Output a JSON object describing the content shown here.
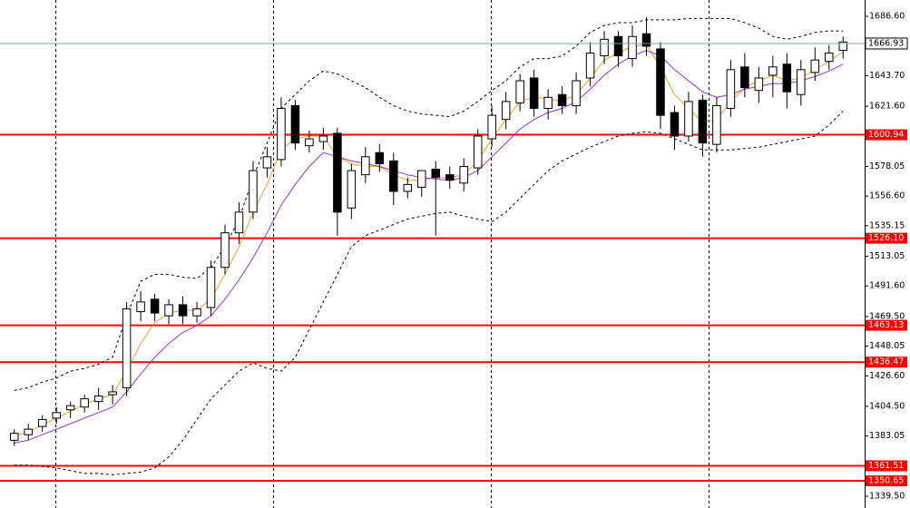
{
  "chart_data": {
    "type": "candlestick",
    "ylim": [
      1331,
      1698.4
    ],
    "yticks": [
      {
        "value": 1686.6,
        "label": "1686.60"
      },
      {
        "value": 1643.7,
        "label": "1643.70"
      },
      {
        "value": 1621.6,
        "label": "1621.60"
      },
      {
        "value": 1578.05,
        "label": "1578.05"
      },
      {
        "value": 1556.6,
        "label": "1556.60"
      },
      {
        "value": 1535.15,
        "label": "1535.15"
      },
      {
        "value": 1513.05,
        "label": "1513.05"
      },
      {
        "value": 1491.6,
        "label": "1491.60"
      },
      {
        "value": 1469.5,
        "label": "1469.50"
      },
      {
        "value": 1448.05,
        "label": "1448.05"
      },
      {
        "value": 1426.6,
        "label": "1426.60"
      },
      {
        "value": 1404.5,
        "label": "1404.50"
      },
      {
        "value": 1383.05,
        "label": "1383.05"
      },
      {
        "value": 1339.5,
        "label": "1339.50"
      }
    ],
    "levels": [
      {
        "value": 1600.94,
        "label": "1600.94"
      },
      {
        "value": 1526.1,
        "label": "1526.10"
      },
      {
        "value": 1463.13,
        "label": "1463.13"
      },
      {
        "value": 1436.47,
        "label": "1436.47"
      },
      {
        "value": 1361.51,
        "label": "1361.51"
      },
      {
        "value": 1350.65,
        "label": "1350.65"
      }
    ],
    "level_color": "#ff0000",
    "current_price": {
      "value": 1666.93,
      "label": "1666.93"
    },
    "open": [
      1380,
      1384,
      1390,
      1396,
      1402,
      1404,
      1408,
      1413,
      1418,
      1473,
      1482,
      1470,
      1478,
      1470,
      1476,
      1505,
      1530,
      1545,
      1577,
      1583,
      1622,
      1593,
      1596,
      1602,
      1548,
      1572,
      1588,
      1582,
      1560,
      1563,
      1576,
      1572,
      1566,
      1577,
      1598,
      1612,
      1624,
      1642,
      1620,
      1630,
      1622,
      1642,
      1658,
      1672,
      1656,
      1674,
      1663,
      1617,
      1600,
      1626,
      1594,
      1620,
      1650,
      1633,
      1644,
      1652,
      1630,
      1646,
      1654,
      1662
    ],
    "high": [
      1388,
      1392,
      1398,
      1404,
      1408,
      1413,
      1418,
      1420,
      1480,
      1488,
      1486,
      1482,
      1484,
      1480,
      1510,
      1536,
      1552,
      1582,
      1592,
      1628,
      1626,
      1604,
      1606,
      1606,
      1580,
      1592,
      1594,
      1588,
      1570,
      1572,
      1582,
      1578,
      1584,
      1605,
      1622,
      1632,
      1645,
      1648,
      1634,
      1636,
      1646,
      1668,
      1676,
      1676,
      1680,
      1686,
      1668,
      1622,
      1632,
      1630,
      1628,
      1655,
      1660,
      1650,
      1658,
      1660,
      1655,
      1664,
      1666,
      1672
    ],
    "low": [
      1376,
      1380,
      1386,
      1392,
      1396,
      1400,
      1402,
      1406,
      1412,
      1466,
      1466,
      1464,
      1464,
      1465,
      1470,
      1500,
      1522,
      1540,
      1570,
      1578,
      1590,
      1588,
      1590,
      1528,
      1540,
      1566,
      1574,
      1550,
      1555,
      1556,
      1528,
      1562,
      1560,
      1572,
      1592,
      1605,
      1618,
      1614,
      1612,
      1616,
      1616,
      1636,
      1652,
      1650,
      1650,
      1658,
      1605,
      1590,
      1596,
      1585,
      1588,
      1614,
      1628,
      1624,
      1628,
      1620,
      1622,
      1640,
      1648,
      1656
    ],
    "close": [
      1385,
      1388,
      1395,
      1400,
      1405,
      1410,
      1412,
      1415,
      1475,
      1480,
      1472,
      1478,
      1470,
      1475,
      1505,
      1530,
      1545,
      1575,
      1585,
      1620,
      1595,
      1598,
      1600,
      1545,
      1575,
      1585,
      1580,
      1560,
      1565,
      1575,
      1570,
      1568,
      1578,
      1600,
      1615,
      1625,
      1640,
      1620,
      1628,
      1622,
      1640,
      1660,
      1670,
      1658,
      1672,
      1665,
      1615,
      1600,
      1625,
      1595,
      1622,
      1648,
      1635,
      1642,
      1650,
      1632,
      1648,
      1655,
      1660,
      1668
    ],
    "indicators": [
      {
        "color": "#000000",
        "dashed": true,
        "values": [
          1416,
          1418,
          1422,
          1425,
          1430,
          1432,
          1435,
          1440,
          1470,
          1495,
          1500,
          1500,
          1498,
          1497,
          1505,
          1520,
          1540,
          1570,
          1595,
          1620,
          1630,
          1640,
          1647,
          1645,
          1640,
          1635,
          1628,
          1622,
          1618,
          1616,
          1615,
          1614,
          1618,
          1625,
          1633,
          1640,
          1650,
          1656,
          1656,
          1658,
          1665,
          1675,
          1680,
          1682,
          1682,
          1684,
          1684,
          1684,
          1685,
          1685,
          1685,
          1685,
          1682,
          1678,
          1672,
          1670,
          1672,
          1675,
          1676,
          1676
        ]
      },
      {
        "color": "#000000",
        "dashed": true,
        "values": [
          1362,
          1362,
          1361,
          1360,
          1358,
          1356,
          1356,
          1355,
          1356,
          1357,
          1360,
          1368,
          1380,
          1395,
          1410,
          1420,
          1430,
          1436,
          1432,
          1430,
          1440,
          1460,
          1480,
          1500,
          1520,
          1528,
          1532,
          1536,
          1540,
          1542,
          1544,
          1545,
          1542,
          1540,
          1538,
          1545,
          1555,
          1565,
          1575,
          1582,
          1587,
          1592,
          1596,
          1600,
          1602,
          1603,
          1602,
          1598,
          1594,
          1590,
          1590,
          1590,
          1591,
          1592,
          1594,
          1596,
          1598,
          1600,
          1608,
          1618
        ]
      },
      {
        "color": "#f0a020",
        "dashed": false,
        "values": [
          1383,
          1386,
          1391,
          1396,
          1401,
          1406,
          1410,
          1413,
          1430,
          1450,
          1465,
          1472,
          1474,
          1474,
          1482,
          1500,
          1520,
          1545,
          1565,
          1590,
          1598,
          1600,
          1600,
          1585,
          1580,
          1578,
          1578,
          1572,
          1568,
          1568,
          1570,
          1570,
          1572,
          1582,
          1598,
          1612,
          1625,
          1628,
          1627,
          1625,
          1630,
          1642,
          1655,
          1660,
          1665,
          1666,
          1650,
          1630,
          1620,
          1610,
          1612,
          1625,
          1635,
          1640,
          1644,
          1640,
          1642,
          1648,
          1654,
          1661
        ]
      },
      {
        "color": "#9933cc",
        "dashed": false,
        "values": [
          1378,
          1380,
          1384,
          1388,
          1392,
          1396,
          1400,
          1404,
          1415,
          1428,
          1440,
          1450,
          1458,
          1463,
          1470,
          1482,
          1496,
          1512,
          1530,
          1550,
          1565,
          1578,
          1588,
          1585,
          1582,
          1580,
          1578,
          1575,
          1572,
          1570,
          1569,
          1568,
          1570,
          1575,
          1585,
          1595,
          1605,
          1612,
          1617,
          1620,
          1625,
          1634,
          1644,
          1652,
          1658,
          1662,
          1658,
          1648,
          1640,
          1632,
          1628,
          1630,
          1634,
          1636,
          1638,
          1638,
          1640,
          1643,
          1647,
          1652
        ]
      }
    ]
  }
}
